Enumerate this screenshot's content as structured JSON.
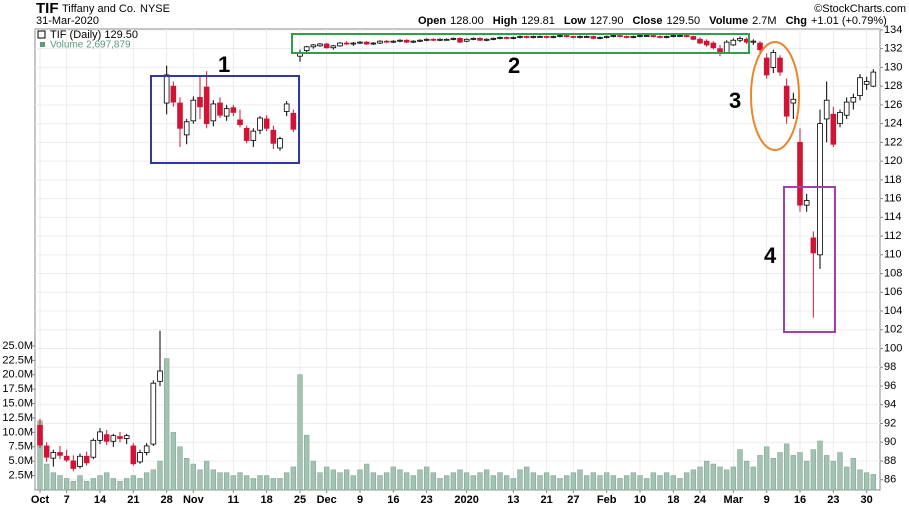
{
  "chart_data": {
    "type": "candlestick",
    "ticker": "TIF",
    "company": "Tiffany and Co.",
    "exchange": "NYSE",
    "date": "31-Mar-2020",
    "credit": "©StockCharts.com",
    "quote": [
      {
        "label": "Open",
        "value": "128.00"
      },
      {
        "label": "High",
        "value": "129.81"
      },
      {
        "label": "Low",
        "value": "127.90"
      },
      {
        "label": "Close",
        "value": "129.50"
      },
      {
        "label": "Volume",
        "value": "2.7M"
      },
      {
        "label": "Chg",
        "value": "+1.01 (+0.79%)"
      }
    ],
    "legend": [
      "TIF (Daily) 129.50",
      "Volume 2,697,879"
    ],
    "annotations": [
      "1",
      "2",
      "3",
      "4"
    ],
    "up_color": "#ffffff",
    "down_color": "#d01436",
    "volume_color": "#a3c2b2",
    "grid": true,
    "xlim": [
      -0.75,
      126
    ],
    "xticks": [
      {
        "value": 0,
        "label": "Oct"
      },
      {
        "value": 4,
        "label": "7"
      },
      {
        "value": 9,
        "label": "14"
      },
      {
        "value": 14,
        "label": "21"
      },
      {
        "value": 19,
        "label": "28"
      },
      {
        "value": 23,
        "label": "Nov"
      },
      {
        "value": 29,
        "label": "11"
      },
      {
        "value": 34,
        "label": "18"
      },
      {
        "value": 39,
        "label": "25"
      },
      {
        "value": 43,
        "label": "Dec"
      },
      {
        "value": 48,
        "label": "9"
      },
      {
        "value": 53,
        "label": "16"
      },
      {
        "value": 58,
        "label": "23"
      },
      {
        "value": 64,
        "label": "2020"
      },
      {
        "value": 71,
        "label": "13"
      },
      {
        "value": 76,
        "label": "21"
      },
      {
        "value": 80,
        "label": "27"
      },
      {
        "value": 85,
        "label": "Feb"
      },
      {
        "value": 90,
        "label": "10"
      },
      {
        "value": 95,
        "label": "18"
      },
      {
        "value": 99,
        "label": "24"
      },
      {
        "value": 104,
        "label": "Mar"
      },
      {
        "value": 109,
        "label": "9"
      },
      {
        "value": 114,
        "label": "16"
      },
      {
        "value": 119,
        "label": "23"
      },
      {
        "value": 124,
        "label": "30"
      }
    ],
    "ylim": [
      84.9,
      134.1
    ],
    "yticks": [
      86,
      88,
      90,
      92,
      94,
      96,
      98,
      100,
      102,
      104,
      106,
      108,
      110,
      112,
      114,
      116,
      118,
      120,
      122,
      124,
      126,
      128,
      130,
      132,
      134
    ],
    "y2lim": [
      0,
      80
    ],
    "y2ticks": [
      {
        "value": 2.5,
        "label": "2.5M"
      },
      {
        "value": 5,
        "label": "5.0M"
      },
      {
        "value": 7.5,
        "label": "7.5M"
      },
      {
        "value": 10,
        "label": "10.0M"
      },
      {
        "value": 12.5,
        "label": "12.5M"
      },
      {
        "value": 15,
        "label": "15.0M"
      },
      {
        "value": 17.5,
        "label": "17.5M"
      },
      {
        "value": 20,
        "label": "20.0M"
      },
      {
        "value": 22.5,
        "label": "22.5M"
      },
      {
        "value": 25,
        "label": "25.0M"
      }
    ],
    "candles": [
      [
        91.8,
        92.5,
        89.4,
        89.7
      ],
      [
        89.6,
        90,
        87.9,
        88.4
      ],
      [
        88.3,
        89.2,
        87.4,
        88.9
      ],
      [
        88.9,
        89.6,
        88.2,
        88.6
      ],
      [
        88.5,
        89.2,
        87.9,
        88.1
      ],
      [
        88,
        88.6,
        86.9,
        87.2
      ],
      [
        87.4,
        88.8,
        87.2,
        88.5
      ],
      [
        88.5,
        89,
        87.5,
        87.8
      ],
      [
        88.4,
        90.4,
        88.2,
        90.2
      ],
      [
        90.2,
        91.5,
        89.8,
        91.1
      ],
      [
        90.8,
        91.3,
        89.7,
        90.1
      ],
      [
        90.1,
        90.9,
        89.5,
        90.7
      ],
      [
        90.6,
        91.1,
        90,
        90.4
      ],
      [
        90.4,
        90.9,
        89.8,
        90.7
      ],
      [
        89.6,
        89.9,
        87.5,
        87.7
      ],
      [
        87.9,
        89.2,
        87.7,
        88.9
      ],
      [
        88.9,
        89.9,
        88.6,
        89.6
      ],
      [
        89.8,
        96.6,
        89.6,
        96.3
      ],
      [
        96.5,
        101.9,
        96,
        97.6
      ],
      [
        126.2,
        130.2,
        125,
        129.2
      ],
      [
        128,
        128.5,
        125.8,
        126.3
      ],
      [
        126.2,
        126.8,
        121.5,
        123.5
      ],
      [
        122.8,
        124.5,
        121.8,
        124.2
      ],
      [
        124.3,
        126.9,
        124,
        126.5
      ],
      [
        126.8,
        129,
        124.5,
        125.8
      ],
      [
        127.9,
        129.6,
        123.5,
        124
      ],
      [
        124.3,
        126.5,
        123.7,
        126.1
      ],
      [
        126.2,
        126.8,
        124.6,
        124.9
      ],
      [
        124.8,
        126,
        124.3,
        125.6
      ],
      [
        125.7,
        126,
        124.8,
        125.2
      ],
      [
        124.4,
        125.5,
        123.6,
        123.9
      ],
      [
        123.5,
        123.8,
        121.9,
        122.2
      ],
      [
        122.2,
        123.5,
        121.5,
        123.2
      ],
      [
        123.3,
        124.8,
        122.9,
        124.6
      ],
      [
        124.5,
        124.9,
        123.2,
        123.5
      ],
      [
        123.3,
        123.8,
        121.3,
        121.9
      ],
      [
        121.4,
        122.6,
        121.1,
        122.4
      ],
      [
        125.3,
        126.4,
        124.8,
        126.1
      ],
      [
        125.1,
        125.5,
        123.1,
        123.4
      ],
      [
        131.2,
        131.9,
        130.6,
        131.5
      ],
      [
        131.8,
        132.3,
        131.6,
        132.2
      ],
      [
        132.2,
        132.5,
        132,
        132.4
      ],
      [
        132.3,
        132.6,
        132.2,
        132.5
      ],
      [
        132.5,
        132.6,
        132,
        132.1
      ],
      [
        132.1,
        132.4,
        131.9,
        132.3
      ],
      [
        132.3,
        132.7,
        132.2,
        132.6
      ],
      [
        132.6,
        132.8,
        132.4,
        132.5
      ],
      [
        132.5,
        132.7,
        132.3,
        132.6
      ],
      [
        132.6,
        132.8,
        132.5,
        132.7
      ],
      [
        132.7,
        132.8,
        132.4,
        132.5
      ],
      [
        132.5,
        132.7,
        132.4,
        132.6
      ],
      [
        132.6,
        132.9,
        132.5,
        132.8
      ],
      [
        132.8,
        132.9,
        132.6,
        132.7
      ],
      [
        132.7,
        132.9,
        132.6,
        132.8
      ],
      [
        132.8,
        133,
        132.7,
        132.9
      ],
      [
        132.9,
        133,
        132.6,
        132.7
      ],
      [
        132.7,
        132.9,
        132.6,
        132.8
      ],
      [
        132.8,
        133,
        132.7,
        132.9
      ],
      [
        132.9,
        133.1,
        132.8,
        133
      ],
      [
        133,
        133.1,
        132.8,
        132.9
      ],
      [
        132.9,
        133.1,
        132.8,
        133
      ],
      [
        133,
        133.1,
        132.9,
        133
      ],
      [
        133,
        133.2,
        132.9,
        133.1
      ],
      [
        133.1,
        133.2,
        132.6,
        132.7
      ],
      [
        132.8,
        133.1,
        132.7,
        133
      ],
      [
        133,
        133.2,
        132.9,
        133.1
      ],
      [
        133.1,
        133.2,
        132.8,
        132.9
      ],
      [
        132.9,
        133.1,
        132.8,
        133
      ],
      [
        133,
        133.2,
        132.9,
        133.1
      ],
      [
        133.1,
        133.3,
        133,
        133.2
      ],
      [
        133.2,
        133.3,
        133,
        133.1
      ],
      [
        133.1,
        133.3,
        133,
        133.2
      ],
      [
        133.2,
        133.4,
        133.1,
        133.3
      ],
      [
        133.3,
        133.4,
        133.1,
        133.2
      ],
      [
        133.2,
        133.4,
        133.1,
        133.3
      ],
      [
        133.3,
        133.4,
        133.2,
        133.3
      ],
      [
        133.3,
        133.4,
        133.1,
        133.2
      ],
      [
        133.2,
        133.4,
        133.1,
        133.3
      ],
      [
        133.3,
        133.5,
        133.2,
        133.4
      ],
      [
        133.4,
        133.5,
        133.2,
        133.3
      ],
      [
        133.3,
        133.4,
        133.1,
        133.2
      ],
      [
        133.2,
        133.4,
        133.1,
        133.3
      ],
      [
        133.3,
        133.4,
        133.2,
        133.3
      ],
      [
        133.3,
        133.4,
        133,
        133.1
      ],
      [
        133.1,
        133.3,
        133,
        133.2
      ],
      [
        133.2,
        133.4,
        133.1,
        133.3
      ],
      [
        133.3,
        133.5,
        133.2,
        133.4
      ],
      [
        133.4,
        133.5,
        133.2,
        133.3
      ],
      [
        133.3,
        133.4,
        133.1,
        133.2
      ],
      [
        133.2,
        133.4,
        133.1,
        133.3
      ],
      [
        133.3,
        133.5,
        133.2,
        133.4
      ],
      [
        133.4,
        133.5,
        133.3,
        133.4
      ],
      [
        133.4,
        133.5,
        133.2,
        133.3
      ],
      [
        133.3,
        133.4,
        133.1,
        133.2
      ],
      [
        133.2,
        133.4,
        133.1,
        133.3
      ],
      [
        133.3,
        133.5,
        133.2,
        133.4
      ],
      [
        133.4,
        133.5,
        133.3,
        133.4
      ],
      [
        133.4,
        133.5,
        133.2,
        133.3
      ],
      [
        133.3,
        133.4,
        132.9,
        133
      ],
      [
        133,
        133.2,
        132.5,
        132.6
      ],
      [
        132.8,
        133,
        132.2,
        132.4
      ],
      [
        132.6,
        132.8,
        131.9,
        132.1
      ],
      [
        132,
        132.4,
        131.2,
        131.5
      ],
      [
        131.6,
        132.9,
        131.5,
        132.7
      ],
      [
        132.4,
        133.1,
        132.3,
        132.9
      ],
      [
        132.9,
        133.3,
        132.7,
        133.1
      ],
      [
        133,
        133.2,
        132.5,
        132.7
      ],
      [
        132.7,
        133,
        132.4,
        132.8
      ],
      [
        132.6,
        132.8,
        131.5,
        131.9
      ],
      [
        131,
        131.5,
        128.8,
        129.2
      ],
      [
        130,
        131.9,
        129.4,
        131.6
      ],
      [
        131,
        131.3,
        129.1,
        129.5
      ],
      [
        128,
        128.8,
        124,
        124.8
      ],
      [
        126.2,
        127.3,
        124.5,
        126.6
      ],
      [
        122,
        123.5,
        114.6,
        115.3
      ],
      [
        115.3,
        116.5,
        114.6,
        115.8
      ],
      [
        111.8,
        112.5,
        103.3,
        110.2
      ],
      [
        110,
        125.5,
        108.5,
        124
      ],
      [
        124.5,
        128.5,
        122,
        126.5
      ],
      [
        125,
        125.8,
        121.5,
        121.8
      ],
      [
        124,
        125.5,
        123.6,
        125.2
      ],
      [
        124.9,
        126.8,
        124.5,
        126.3
      ],
      [
        126.3,
        127.2,
        125.5,
        126.8
      ],
      [
        127,
        129.3,
        126.5,
        128.9
      ],
      [
        128.2,
        129,
        127.6,
        128.49
      ],
      [
        128,
        129.81,
        127.9,
        129.5
      ]
    ],
    "volume": [
      12,
      4.5,
      3,
      2.5,
      2,
      1.5,
      2.5,
      1.5,
      2,
      2.5,
      3,
      2,
      1.5,
      2,
      2.5,
      2,
      3,
      3.5,
      5,
      22.8,
      10,
      7.5,
      5.5,
      4.5,
      3.5,
      5,
      3.5,
      3,
      3,
      2.5,
      3,
      2.5,
      2,
      2.5,
      2.5,
      2,
      2,
      3,
      4,
      20,
      9.5,
      5,
      3,
      4,
      3.5,
      3,
      3.5,
      2.5,
      3.5,
      4.5,
      3,
      2.5,
      3,
      4,
      3.5,
      3,
      2.5,
      3.5,
      4,
      3,
      2,
      2.5,
      3,
      3.5,
      3,
      2.5,
      3,
      3.5,
      2.5,
      3,
      2.5,
      2,
      3.5,
      4,
      3,
      2.5,
      3,
      2.5,
      2,
      2.5,
      3,
      3.5,
      2.5,
      3,
      2.5,
      3,
      2.5,
      2,
      2.5,
      3,
      2.5,
      2,
      3,
      2.5,
      3,
      2.5,
      2,
      3,
      3.5,
      4,
      5,
      4.5,
      4,
      3.5,
      4,
      7,
      5,
      4,
      6,
      7.5,
      5.5,
      6.5,
      8,
      6,
      6.5,
      5,
      7,
      8.5,
      6,
      5,
      6.5,
      4,
      5.5,
      3.5,
      3,
      2.7
    ]
  }
}
